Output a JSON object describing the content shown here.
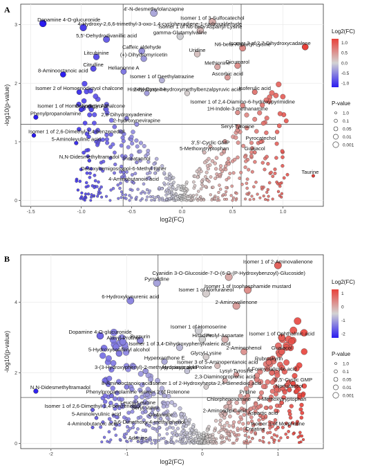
{
  "chart_data": [
    {
      "panel": "A",
      "type": "scatter",
      "xlabel": "log2(FC)",
      "ylabel": "-log10(p-value)",
      "xlim": [
        -1.6,
        1.4
      ],
      "ylim": [
        -0.1,
        3.35
      ],
      "xticks": [
        -1.5,
        -1.0,
        -0.5,
        0.0,
        0.5,
        1.0
      ],
      "yticks": [
        0,
        1,
        2,
        3
      ],
      "vlines": [
        -0.585,
        0.585
      ],
      "hline": 1.301,
      "grid": true,
      "color_legend": {
        "title": "Log2(FC)",
        "ticks": [
          1.0,
          0.5,
          0.0,
          -0.5,
          -1.0
        ],
        "range": [
          -1.2,
          1.2
        ]
      },
      "size_legend": {
        "title": "P-value",
        "labels": [
          "1.0",
          "0.1",
          "0.05",
          "0.01",
          "0.001"
        ]
      },
      "labeled_points": [
        {
          "label": "Dopamine 4-O-glucuronide",
          "x": -1.38,
          "y": 3.02
        },
        {
          "label": "4'-N-desmethylolanzapine",
          "x": -0.28,
          "y": 3.2
        },
        {
          "label": "4-Hydroxy-2,6,6-trimethyl-3-oxo-1,4-cyclohexadiene-1-carboxaldehyde",
          "x": -0.98,
          "y": 2.95
        },
        {
          "label": "5,5'-Dehydrodivanillic acid",
          "x": -0.75,
          "y": 2.75
        },
        {
          "label": "gamma-Glutamylvaline",
          "x": -0.02,
          "y": 2.8
        },
        {
          "label": "Isomer 1 of 3-Sulfocatechol",
          "x": 0.3,
          "y": 3.05
        },
        {
          "label": "Isomer 1 of N6-beta-Aspartyl-Lysine",
          "x": 0.18,
          "y": 2.9
        },
        {
          "label": "Isomer 2 of 2,7-Dihydroxycadalene",
          "x": 1.22,
          "y": 2.62
        },
        {
          "label": "Caffeic aldehyde",
          "x": -0.4,
          "y": 2.55
        },
        {
          "label": "Uridine",
          "x": 0.15,
          "y": 2.5
        },
        {
          "label": "N6-beta-Aspartyl-Lysine",
          "x": 0.6,
          "y": 2.6
        },
        {
          "label": "Litcubinine",
          "x": -0.85,
          "y": 2.45
        },
        {
          "label": "(+)-Dihydromyricetin",
          "x": -0.38,
          "y": 2.42
        },
        {
          "label": "Methionine",
          "x": 0.35,
          "y": 2.28
        },
        {
          "label": "Dicumarol",
          "x": 0.55,
          "y": 2.3
        },
        {
          "label": "Citrulline",
          "x": -0.88,
          "y": 2.25
        },
        {
          "label": "Ascorbic acid",
          "x": 0.45,
          "y": 2.1
        },
        {
          "label": "8-Aminooctanoic acid",
          "x": -1.18,
          "y": 2.15
        },
        {
          "label": "Helianonne A",
          "x": -0.58,
          "y": 2.2
        },
        {
          "label": "Isomer 1 of Deethylatrazine",
          "x": -0.2,
          "y": 2.05
        },
        {
          "label": "Isoferulic acid",
          "x": 0.72,
          "y": 1.85
        },
        {
          "label": "Isomer 2 of Homoeriodictyol chalcone",
          "x": -1.02,
          "y": 1.85
        },
        {
          "label": "Histidyl-Cysteine",
          "x": -0.35,
          "y": 1.83
        },
        {
          "label": "2-Hydroxy-4-hydroxymethylbenzalpyruvic acid",
          "x": 0.05,
          "y": 1.83
        },
        {
          "label": "Isomer 1 of Homoeriodictyol chalcone",
          "x": -1.0,
          "y": 1.55
        },
        {
          "label": "Isomer 1 of 2,4-Diamino-6-hydroxypyrimidine",
          "x": 0.6,
          "y": 1.62
        },
        {
          "label": "1H-Indole-3-methanamine",
          "x": 0.55,
          "y": 1.5
        },
        {
          "label": "Calystegin A3",
          "x": -0.9,
          "y": 1.55
        },
        {
          "label": "Phenylpropanolamine",
          "x": -1.45,
          "y": 1.42
        },
        {
          "label": "2,8-Dihydroxyadenine",
          "x": -0.55,
          "y": 1.4
        },
        {
          "label": "2-hydroxynevirapine",
          "x": -0.45,
          "y": 1.3
        },
        {
          "label": "Seryl-Tyrosine",
          "x": 0.55,
          "y": 1.2
        },
        {
          "label": "Isomer 1 of 2,6-Dimethyl-1,4-benzenediol",
          "x": -1.47,
          "y": 1.11
        },
        {
          "label": "3',5'-Cyclic GMP",
          "x": 0.28,
          "y": 0.92
        },
        {
          "label": "Pyrocatechol",
          "x": 0.78,
          "y": 1.0
        },
        {
          "label": "5-Aminolevulinic acid",
          "x": -1.05,
          "y": 0.98
        },
        {
          "label": "5-Methoxytryptophan",
          "x": 0.22,
          "y": 0.82
        },
        {
          "label": "Guaiacol",
          "x": 0.72,
          "y": 0.82
        },
        {
          "label": "N,N-Didesmethyltramadol",
          "x": -0.92,
          "y": 0.68
        },
        {
          "label": "Piceatannol",
          "x": -0.45,
          "y": 0.65
        },
        {
          "label": "Desoxyhemigossypol-6-Methyl Ether",
          "x": -0.58,
          "y": 0.48
        },
        {
          "label": "4-Aminobutanoic acid",
          "x": -0.48,
          "y": 0.3
        },
        {
          "label": "Taurine",
          "x": 1.3,
          "y": 0.42
        }
      ]
    },
    {
      "panel": "B",
      "type": "scatter",
      "xlabel": "log2(FC)",
      "ylabel": "-log10(p-value)",
      "xlim": [
        -2.4,
        1.6
      ],
      "ylim": [
        -0.15,
        5.35
      ],
      "xticks": [
        -2,
        -1,
        0,
        1
      ],
      "yticks": [
        0,
        2,
        4
      ],
      "vlines": [
        -0.585,
        0.585
      ],
      "hline": 1.301,
      "grid": true,
      "color_legend": {
        "title": "Log2(FC)",
        "ticks": [
          1,
          0,
          -1,
          -2
        ],
        "range": [
          -2.3,
          1.3
        ]
      },
      "size_legend": {
        "title": "P-value",
        "labels": [
          "1.0",
          "0.1",
          "0.05",
          "0.01",
          "0.001"
        ]
      },
      "labeled_points": [
        {
          "label": "Isomer 1 of 2-Aminovalienone",
          "x": 1.0,
          "y": 5.05
        },
        {
          "label": "Cyanidin 3-O-Glucoside-7-O-(6-O-(P-Hydroxybenzoyl)-Glucoside)",
          "x": 0.35,
          "y": 4.72
        },
        {
          "label": "Pyrrolidine",
          "x": -0.6,
          "y": 4.55
        },
        {
          "label": "Isomer 1 of Isophosphamide mustard",
          "x": 0.6,
          "y": 4.35
        },
        {
          "label": "Isomer 1 of Norfuraneol",
          "x": 0.05,
          "y": 4.25
        },
        {
          "label": "6-Hydroxykynurenic acid",
          "x": -0.95,
          "y": 4.05
        },
        {
          "label": "2-Aminovalienone",
          "x": 0.45,
          "y": 3.9
        },
        {
          "label": "Isomer 1 of Homoserine",
          "x": -0.05,
          "y": 3.2
        },
        {
          "label": "Dopamine 4-O-glucuronide",
          "x": -1.35,
          "y": 3.05
        },
        {
          "label": "Purpurin",
          "x": -0.82,
          "y": 2.92
        },
        {
          "label": "Histidine",
          "x": 0.0,
          "y": 2.95
        },
        {
          "label": "Prolyl-Aspartate",
          "x": 0.3,
          "y": 2.95
        },
        {
          "label": "Isomer 1 of Ophthalmic acid",
          "x": 1.05,
          "y": 3.0
        },
        {
          "label": "Alanyl-Proline",
          "x": -1.05,
          "y": 2.88
        },
        {
          "label": "Isomer 1 of 3,4-Dihydroxyphenylvaleric acid",
          "x": -0.3,
          "y": 2.72
        },
        {
          "label": "2-Aminophenol",
          "x": 0.55,
          "y": 2.6
        },
        {
          "label": "Guaiacol",
          "x": 1.05,
          "y": 2.6
        },
        {
          "label": "5-Hydroxyconiferyl alcohol",
          "x": -1.1,
          "y": 2.55
        },
        {
          "label": "Glycyl-Lysine",
          "x": 0.05,
          "y": 2.45
        },
        {
          "label": "Rubroskyrin",
          "x": 0.88,
          "y": 2.3
        },
        {
          "label": "Hyperxanthone E",
          "x": -0.5,
          "y": 2.32
        },
        {
          "label": "Isomer 3 of 5-Aminopentanoic acid",
          "x": 0.2,
          "y": 2.2
        },
        {
          "label": "4-Formylsalicylic acid",
          "x": 0.92,
          "y": 2.0
        },
        {
          "label": "3-(3-Hydroxyphenyl)-2-methylpropionic acid",
          "x": -0.75,
          "y": 2.05
        },
        {
          "label": "Hydroxyprolyl-Proline",
          "x": -0.2,
          "y": 2.05
        },
        {
          "label": "Lysyl-Tyrosine",
          "x": 0.45,
          "y": 1.95
        },
        {
          "label": "2,3-Diaminopropionic acid",
          "x": 0.3,
          "y": 1.78
        },
        {
          "label": "3',5'-Cyclic GMP",
          "x": 1.2,
          "y": 1.7
        },
        {
          "label": "8-Aminooctanoic acid",
          "x": -1.0,
          "y": 1.6
        },
        {
          "label": "Isomer 1 of 2-Hydroxyhepta-2,4-dienedioic acid",
          "x": 0.05,
          "y": 1.6
        },
        {
          "label": "Norfuraneol",
          "x": 1.15,
          "y": 1.52
        },
        {
          "label": "Phenylpropanolamine",
          "x": -1.2,
          "y": 1.35
        },
        {
          "label": "Isomer 2 of Rotenone",
          "x": -0.5,
          "y": 1.35
        },
        {
          "label": "N,N-Didesmethyltramadol",
          "x": -2.2,
          "y": 1.48
        },
        {
          "label": "Proline",
          "x": 0.6,
          "y": 1.35
        },
        {
          "label": "Chlorphenoxamine",
          "x": 0.35,
          "y": 1.15
        },
        {
          "label": "5-Methoxytryptophan",
          "x": 1.05,
          "y": 1.15
        },
        {
          "label": "Leucyl-Leucine",
          "x": -0.85,
          "y": 1.05
        },
        {
          "label": "Isomer 1 of 2,6-Dimethyl-1,4-benzenediol",
          "x": -1.45,
          "y": 0.95
        },
        {
          "label": "Seryl-Valine",
          "x": -0.75,
          "y": 0.9
        },
        {
          "label": "2-Aminoadipic acid",
          "x": 0.3,
          "y": 0.82
        },
        {
          "label": "Aspartic acid",
          "x": 0.8,
          "y": 0.75
        },
        {
          "label": "5-Aminolevulinic acid",
          "x": -1.4,
          "y": 0.72
        },
        {
          "label": "Glutamate",
          "x": -0.55,
          "y": 0.7
        },
        {
          "label": "4-Aminobutanoic acid",
          "x": -1.45,
          "y": 0.45
        },
        {
          "label": "2,6-Dimethoxy-4-methylphenol",
          "x": -0.7,
          "y": 0.5
        },
        {
          "label": "Isomer 1 of Morpholine",
          "x": 1.0,
          "y": 0.45
        },
        {
          "label": "Creatine",
          "x": 0.7,
          "y": 0.3
        },
        {
          "label": "Adenine",
          "x": -0.85,
          "y": 0.05
        }
      ]
    }
  ]
}
